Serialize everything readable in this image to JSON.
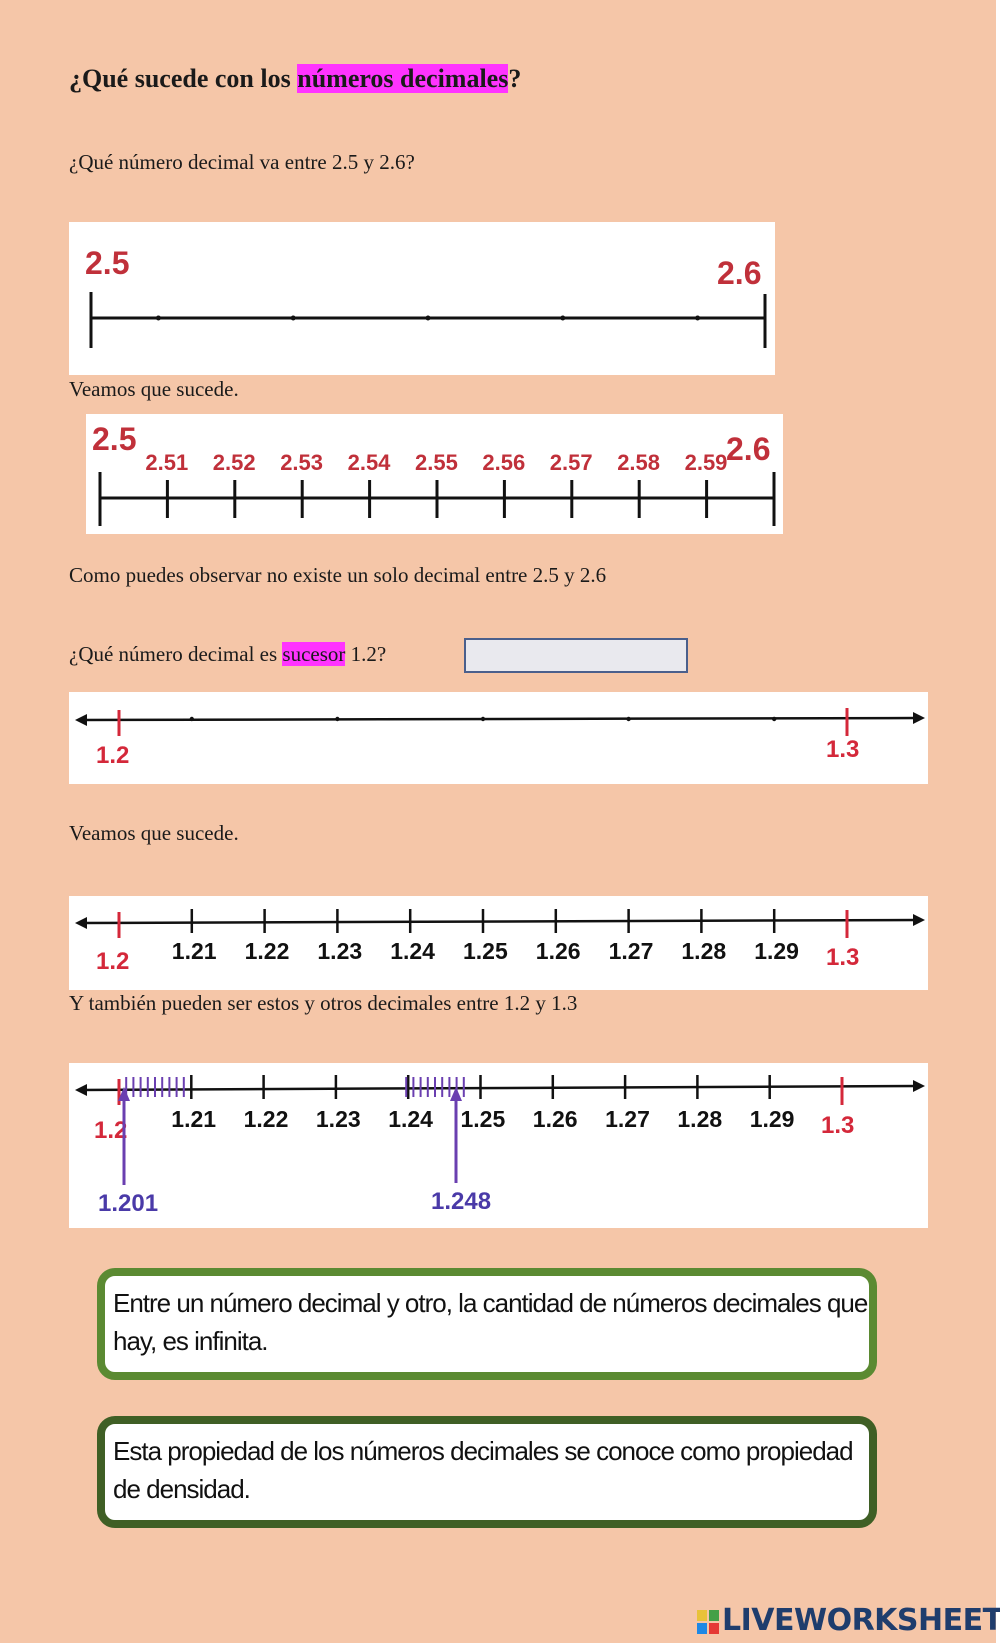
{
  "title": {
    "prefix": "¿Qué sucede con los ",
    "highlight": "números decimales",
    "suffix": "?"
  },
  "question1": "¿Qué número decimal va entre  2.5 y 2.6?",
  "line1": {
    "start": "2.5",
    "end": "2.6"
  },
  "see1": "Veamos que sucede.",
  "line2": {
    "start": "2.5",
    "end": "2.6",
    "ticks": [
      "2.51",
      "2.52",
      "2.53",
      "2.54",
      "2.55",
      "2.56",
      "2.57",
      "2.58",
      "2.59"
    ]
  },
  "observe": "Como puedes observar no existe un solo decimal entre 2.5 y 2.6",
  "question2": {
    "prefix": "¿Qué número decimal es ",
    "highlight": "sucesor",
    "suffix": " 1.2?",
    "answer_value": ""
  },
  "line3": {
    "start": "1.2",
    "end": "1.3"
  },
  "see2": "Veamos que sucede.",
  "line4": {
    "start": "1.2",
    "end": "1.3",
    "ticks": [
      "1.21",
      "1.22",
      "1.23",
      "1.24",
      "1.25",
      "1.26",
      "1.27",
      "1.28",
      "1.29"
    ]
  },
  "also": "Y también pueden ser estos y otros decimales entre 1.2 y 1.3",
  "line5": {
    "start": "1.2",
    "end": "1.3",
    "ticks": [
      "1.21",
      "1.22",
      "1.23",
      "1.24",
      "1.25",
      "1.26",
      "1.27",
      "1.28",
      "1.29"
    ],
    "pointer_a": "1.201",
    "pointer_b": "1.248"
  },
  "callout1": "Entre un número decimal y otro, la cantidad de números decimales que hay, es infinita.",
  "callout2": "Esta propiedad de los números decimales se conoce como propiedad de densidad.",
  "brand": "LIVEWORKSHEETS",
  "colors": {
    "background": "#f5c6a8",
    "highlight": "#ff33ff",
    "red_labels": "#d4283a",
    "purple_marks": "#6a3fb0",
    "callout_border": "#5b8a32",
    "brand": "#1f3d6d"
  }
}
